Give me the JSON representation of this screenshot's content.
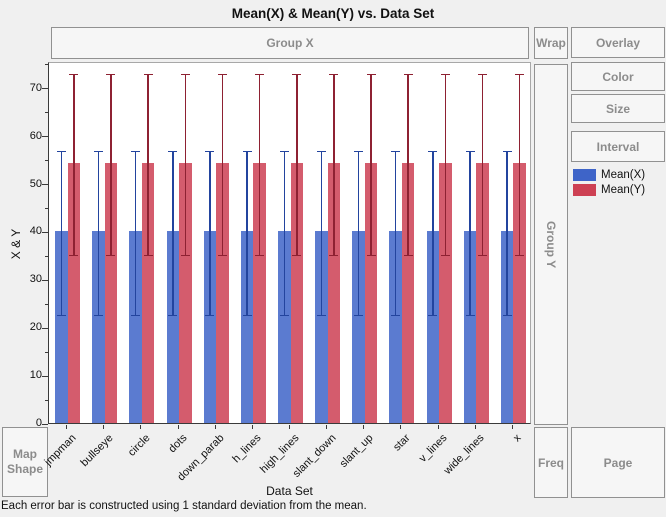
{
  "window": {
    "background": "#f0f0f0"
  },
  "title": "Mean(X) & Mean(Y) vs. Data Set",
  "zones": {
    "group_x": "Group X",
    "wrap": "Wrap",
    "overlay": "Overlay",
    "color": "Color",
    "size": "Size",
    "interval": "Interval",
    "group_y": "Group Y",
    "map_shape": "Map Shape",
    "freq": "Freq",
    "page": "Page"
  },
  "legend": {
    "items": [
      {
        "label": "Mean(X)",
        "color": "#3e64c8"
      },
      {
        "label": "Mean(Y)",
        "color": "#cd4053"
      }
    ]
  },
  "footnote": "Each error bar is constructed using 1 standard deviation from the mean.",
  "chart_data": {
    "type": "bar",
    "title": "Mean(X) & Mean(Y) vs. Data Set",
    "xlabel": "Data Set",
    "ylabel": "X & Y",
    "categories": [
      "jmpman",
      "bullseye",
      "circle",
      "dots",
      "down_parab",
      "h_lines",
      "high_lines",
      "slant_down",
      "slant_up",
      "star",
      "v_lines",
      "wide_lines",
      "x"
    ],
    "series": [
      {
        "name": "Mean(X)",
        "color": "#3e64c8",
        "bar_fill": "rgba(62,100,200,0.85)",
        "error_color": "#23449e",
        "values": [
          40,
          40,
          40,
          40,
          40,
          40,
          40,
          40,
          40,
          40,
          40,
          40,
          40
        ],
        "sd": [
          17.2,
          17.2,
          17.2,
          17.2,
          17.2,
          17.2,
          17.2,
          17.2,
          17.2,
          17.2,
          17.2,
          17.2,
          17.2
        ]
      },
      {
        "name": "Mean(Y)",
        "color": "#cd4053",
        "bar_fill": "rgba(205,64,83,0.85)",
        "error_color": "#8e2132",
        "values": [
          54.3,
          54.3,
          54.3,
          54.3,
          54.3,
          54.3,
          54.3,
          54.3,
          54.3,
          54.3,
          54.3,
          54.3,
          54.3
        ],
        "sd": [
          19,
          19,
          19,
          19,
          19,
          19,
          19,
          19,
          19,
          19,
          19,
          19,
          19
        ]
      }
    ],
    "ylim": [
      0,
      75.6
    ],
    "yticks": [
      0,
      10,
      20,
      30,
      40,
      50,
      60,
      70
    ],
    "yticks_minor": [
      5,
      15,
      25,
      35,
      45,
      55,
      65,
      75
    ],
    "error_bars": "mean ± 1 standard deviation",
    "grid": false,
    "legend_position": "right"
  }
}
